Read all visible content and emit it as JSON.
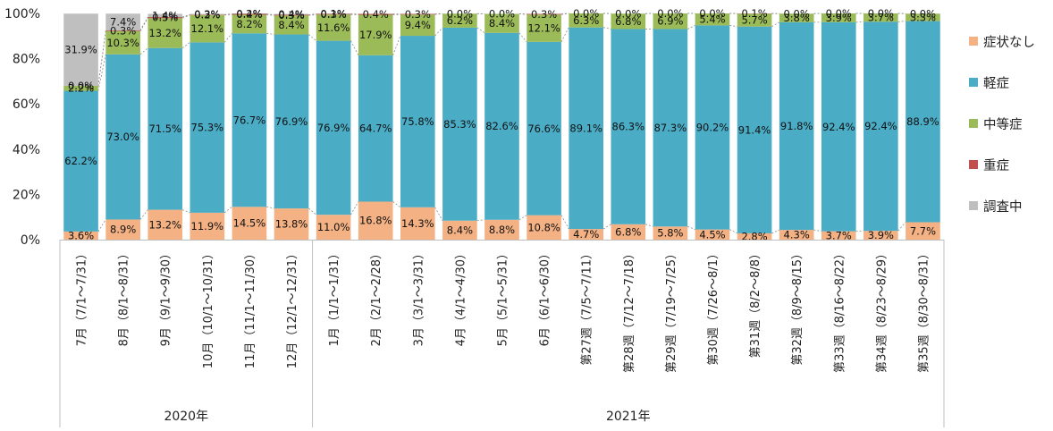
{
  "chart_data": {
    "type": "bar",
    "stacked": true,
    "normalized": true,
    "categories": [
      "7月（7/1～7/31）",
      "8月（8/1～8/31）",
      "9月（9/1～9/30）",
      "10月（10/1～10/31）",
      "11月（11/1～11/30）",
      "12月（12/1～12/31）",
      "1月（1/1～1/31）",
      "2月（2/1～2/28）",
      "3月（3/1～3/31）",
      "4月（4/1～4/30）",
      "5月（5/1～5/31）",
      "6月（6/1～6/30）",
      "第27週（7/5～7/11）",
      "第28週（7/12～7/18）",
      "第29週（7/19～7/25）",
      "第30週（7/26～8/1）",
      "第31週（8/2～8/8）",
      "第32週（8/9～8/15）",
      "第33週（8/16～8/22）",
      "第34週（8/23～8/29）",
      "第35週（8/30～8/31）"
    ],
    "groups": [
      {
        "label": "2020年",
        "count": 6
      },
      {
        "label": "2021年",
        "count": 15
      }
    ],
    "series": [
      {
        "name": "症状なし",
        "color": "#f4b183",
        "values": [
          3.6,
          8.9,
          13.2,
          11.9,
          14.5,
          13.8,
          11.0,
          16.8,
          14.3,
          8.4,
          8.8,
          10.8,
          4.7,
          6.8,
          5.8,
          4.5,
          2.8,
          4.3,
          3.7,
          3.9,
          7.7
        ]
      },
      {
        "name": "軽症",
        "color": "#4bacc6",
        "values": [
          62.2,
          73.0,
          71.5,
          75.3,
          76.7,
          76.9,
          76.9,
          64.7,
          75.8,
          85.3,
          82.6,
          76.6,
          89.1,
          86.3,
          87.3,
          90.2,
          91.4,
          91.8,
          92.4,
          92.4,
          88.9
        ]
      },
      {
        "name": "中等症",
        "color": "#9bbb59",
        "values": [
          2.2,
          10.3,
          13.2,
          12.1,
          8.2,
          8.4,
          11.6,
          17.9,
          9.4,
          6.2,
          8.4,
          12.1,
          6.3,
          6.8,
          6.9,
          5.4,
          5.7,
          3.8,
          3.9,
          3.7,
          3.3
        ]
      },
      {
        "name": "重症",
        "color": "#c0504d",
        "values": [
          0.0,
          0.3,
          0.5,
          0.2,
          0.4,
          0.3,
          0.3,
          0.4,
          0.3,
          0.0,
          0.0,
          0.3,
          0.0,
          0.0,
          0.0,
          0.0,
          0.1,
          0.0,
          0.0,
          0.0,
          0.0
        ]
      },
      {
        "name": "調査中",
        "color": "#bfbfbf",
        "values": [
          31.9,
          7.4,
          1.4,
          0.3,
          0.2,
          0.4,
          0.1,
          0.0,
          0.0,
          0.0,
          0.0,
          0.0,
          0.0,
          0.0,
          0.0,
          0.0,
          0.0,
          0.0,
          0.0,
          0.0,
          0.0
        ]
      }
    ],
    "y_ticks": [
      "0%",
      "20%",
      "40%",
      "60%",
      "80%",
      "100%"
    ],
    "ylim": [
      0,
      100
    ],
    "legend_position": "right",
    "grid": false
  }
}
